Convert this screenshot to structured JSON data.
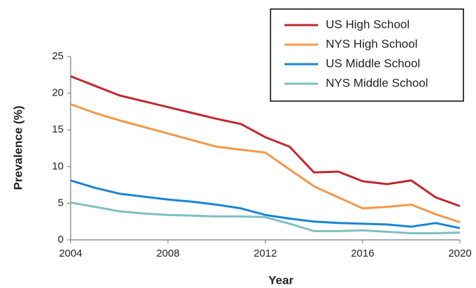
{
  "chart_data": {
    "type": "line",
    "x_label": "Year",
    "y_label": "Prevalence (%)",
    "x": [
      2004,
      2005,
      2006,
      2007,
      2008,
      2009,
      2010,
      2011,
      2012,
      2013,
      2014,
      2015,
      2016,
      2017,
      2018,
      2019,
      2020
    ],
    "xlim": [
      2004,
      2020
    ],
    "xticks": [
      2004,
      2008,
      2012,
      2016,
      2020
    ],
    "ylim": [
      0,
      25
    ],
    "yticks": [
      0,
      5,
      10,
      15,
      20,
      25
    ],
    "grid": false,
    "legend": "upper-right",
    "series": [
      {
        "name": "US High School",
        "color": "#c1272d",
        "values": [
          22.3,
          21.0,
          19.7,
          18.9,
          18.1,
          17.3,
          16.5,
          15.8,
          14.0,
          12.7,
          9.2,
          9.3,
          8.0,
          7.6,
          8.1,
          5.8,
          4.6
        ]
      },
      {
        "name": "NYS High School",
        "color": "#f79646",
        "values": [
          18.5,
          17.3,
          16.3,
          15.4,
          14.5,
          13.6,
          12.7,
          12.3,
          11.9,
          9.6,
          7.3,
          5.8,
          4.3,
          4.5,
          4.8,
          3.5,
          2.4
        ]
      },
      {
        "name": "US Middle School",
        "color": "#1585d6",
        "values": [
          8.1,
          7.1,
          6.3,
          5.9,
          5.5,
          5.2,
          4.8,
          4.3,
          3.4,
          2.9,
          2.5,
          2.3,
          2.2,
          2.1,
          1.8,
          2.3,
          1.6
        ]
      },
      {
        "name": "NYS Middle School",
        "color": "#7fbfc0",
        "values": [
          5.1,
          4.5,
          3.9,
          3.6,
          3.4,
          3.3,
          3.2,
          3.2,
          3.1,
          2.2,
          1.2,
          1.2,
          1.3,
          1.1,
          0.9,
          0.9,
          1.0
        ]
      }
    ]
  }
}
